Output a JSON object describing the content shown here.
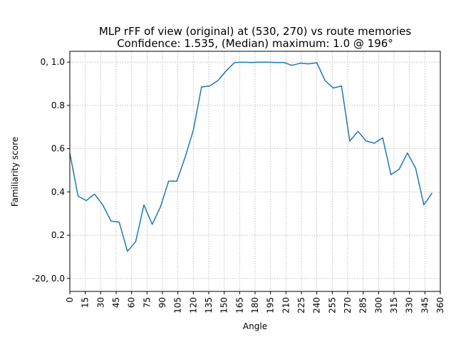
{
  "chart_data": {
    "type": "line",
    "title": "MLP rFF of view (original) at (530, 270) vs route memories",
    "subtitle": "Confidence: 1.535, (Median) maximum: 1.0 @ 196°",
    "xlabel": "Angle",
    "ylabel": "Familiarity score",
    "xlim": [
      0,
      360
    ],
    "ylim": [
      -0.06,
      1.05
    ],
    "grid": true,
    "x_ticks": [
      0,
      15,
      30,
      45,
      60,
      75,
      90,
      105,
      120,
      135,
      150,
      165,
      180,
      195,
      210,
      225,
      240,
      255,
      270,
      285,
      300,
      315,
      330,
      345,
      360
    ],
    "x_tick_labels": [
      "0",
      "15",
      "30",
      "45",
      "60",
      "75",
      "90",
      "105",
      "120",
      "135",
      "150",
      "165",
      "180",
      "195",
      "210",
      "225",
      "240",
      "255",
      "270",
      "285",
      "300",
      "315",
      "330",
      "345",
      "360"
    ],
    "y_ticks": [
      0.0,
      0.2,
      0.4,
      0.6,
      0.8,
      1.0
    ],
    "y_tick_labels": [
      "-20, 0.0",
      "0.2",
      "0.4",
      "0.6",
      "0.8",
      "0, 1.0"
    ],
    "series": [
      {
        "color": "#1f77b4",
        "x": [
          0,
          8,
          16,
          24,
          32,
          40,
          48,
          56,
          64,
          72,
          80,
          88,
          96,
          104,
          112,
          120,
          128,
          136,
          144,
          152,
          160,
          168,
          176,
          184,
          192,
          200,
          208,
          216,
          224,
          232,
          240,
          248,
          256,
          264,
          272,
          280,
          288,
          296,
          304,
          312,
          320,
          328,
          336,
          344,
          352
        ],
        "y": [
          0.58,
          0.38,
          0.36,
          0.39,
          0.34,
          0.265,
          0.26,
          0.125,
          0.17,
          0.34,
          0.25,
          0.33,
          0.45,
          0.45,
          0.56,
          0.685,
          0.885,
          0.89,
          0.915,
          0.96,
          0.998,
          1.0,
          0.998,
          1.0,
          1.0,
          0.998,
          0.998,
          0.985,
          0.995,
          0.992,
          0.997,
          0.915,
          0.88,
          0.89,
          0.635,
          0.68,
          0.635,
          0.625,
          0.65,
          0.48,
          0.505,
          0.58,
          0.51,
          0.34,
          0.395
        ]
      }
    ]
  }
}
